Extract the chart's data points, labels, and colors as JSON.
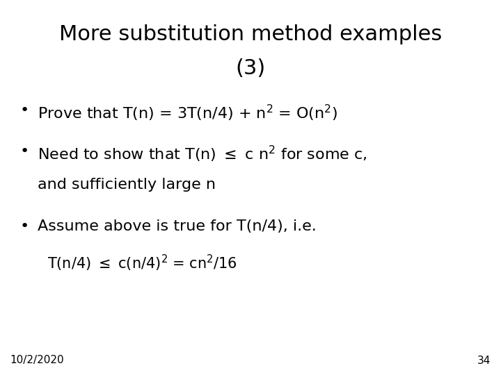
{
  "title_line1": "More substitution method examples",
  "title_line2": "(3)",
  "background_color": "#ffffff",
  "text_color": "#000000",
  "title_fontsize": 22,
  "body_fontsize": 16,
  "footnote_fontsize": 11,
  "footnote_left": "10/2/2020",
  "footnote_right": "34"
}
